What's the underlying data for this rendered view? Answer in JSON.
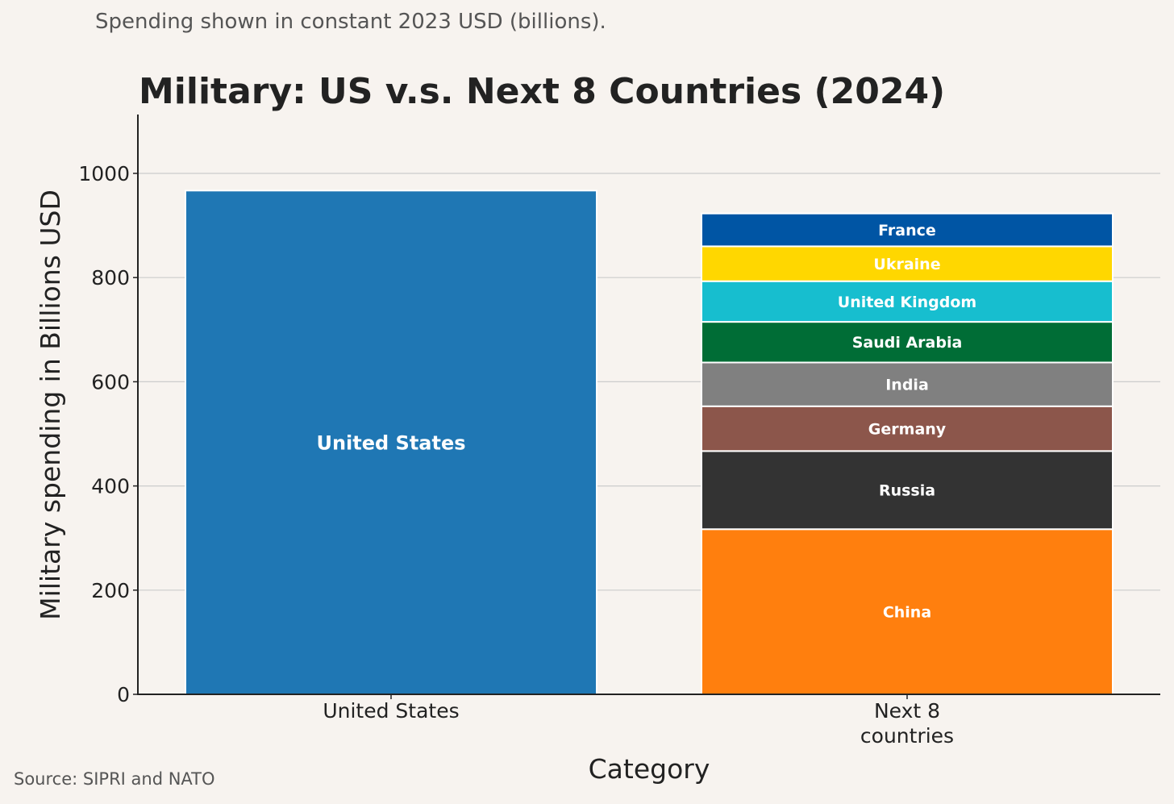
{
  "header": {
    "subtitle": "Spending shown in constant 2023 USD (billions)."
  },
  "footer": {
    "source": "Source: SIPRI and NATO"
  },
  "chart_data": {
    "type": "bar",
    "stacked": true,
    "title": "Military: US v.s. Next 8 Countries (2024)",
    "xlabel": "Category",
    "ylabel": "Military spending in Billions USD",
    "ylim": [
      0,
      1110
    ],
    "yticks": [
      0,
      200,
      400,
      600,
      800,
      1000
    ],
    "grid": "horizontal",
    "categories": [
      "United States",
      "Next 8\ncountries"
    ],
    "bars": [
      {
        "category": "United States",
        "segments": [
          {
            "name": "United States",
            "value": 967,
            "color": "#1f77b4"
          }
        ]
      },
      {
        "category": "Next 8\ncountries",
        "segments": [
          {
            "name": "China",
            "value": 317,
            "color": "#ff7f0e"
          },
          {
            "name": "Russia",
            "value": 150,
            "color": "#333333"
          },
          {
            "name": "Germany",
            "value": 86,
            "color": "#8c564b"
          },
          {
            "name": "India",
            "value": 84,
            "color": "#808080"
          },
          {
            "name": "Saudi Arabia",
            "value": 78,
            "color": "#006d36"
          },
          {
            "name": "United Kingdom",
            "value": 78,
            "color": "#17becf"
          },
          {
            "name": "Ukraine",
            "value": 67,
            "color": "#ffd700"
          },
          {
            "name": "France",
            "value": 63,
            "color": "#0055a4"
          }
        ]
      }
    ]
  }
}
